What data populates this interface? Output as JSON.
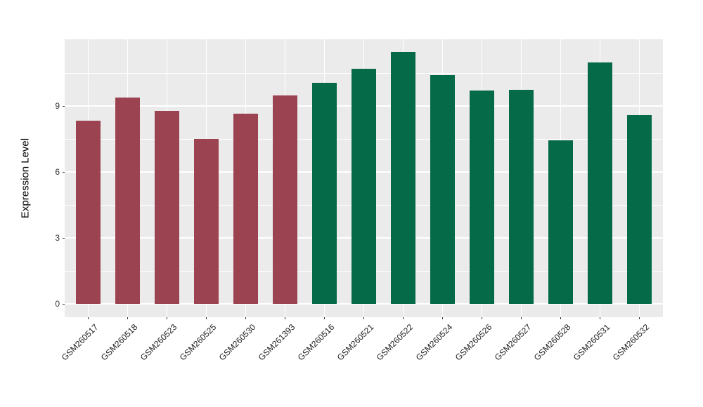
{
  "chart_data": {
    "type": "bar",
    "title": "",
    "xlabel": "",
    "ylabel": "Expression Level",
    "categories": [
      "GSM260517",
      "GSM260518",
      "GSM260523",
      "GSM260525",
      "GSM260530",
      "GSM261393",
      "GSM260516",
      "GSM260521",
      "GSM260522",
      "GSM260524",
      "GSM260526",
      "GSM260527",
      "GSM260528",
      "GSM260531",
      "GSM260532"
    ],
    "values": [
      8.35,
      9.4,
      8.8,
      7.5,
      8.65,
      9.5,
      10.05,
      10.7,
      11.45,
      10.4,
      9.7,
      9.75,
      7.45,
      11.0,
      8.6
    ],
    "color_groups": [
      "maroon",
      "maroon",
      "maroon",
      "maroon",
      "maroon",
      "maroon",
      "green",
      "green",
      "green",
      "green",
      "green",
      "green",
      "green",
      "green",
      "green"
    ],
    "palette": {
      "maroon": "#9C4352",
      "green": "#046A47"
    },
    "yticks": [
      0,
      3,
      6,
      9
    ],
    "ytick_labels": [
      "0",
      "3",
      "6",
      "9"
    ],
    "minor_yticks": [
      1.5,
      4.5,
      7.5,
      10.5
    ],
    "ylim": [
      -0.6,
      12.04
    ],
    "grid": true,
    "legend": "none",
    "panel_bg": "#EBEBEB",
    "grid_color": "#FFFFFF",
    "tick_color": "#333333"
  }
}
